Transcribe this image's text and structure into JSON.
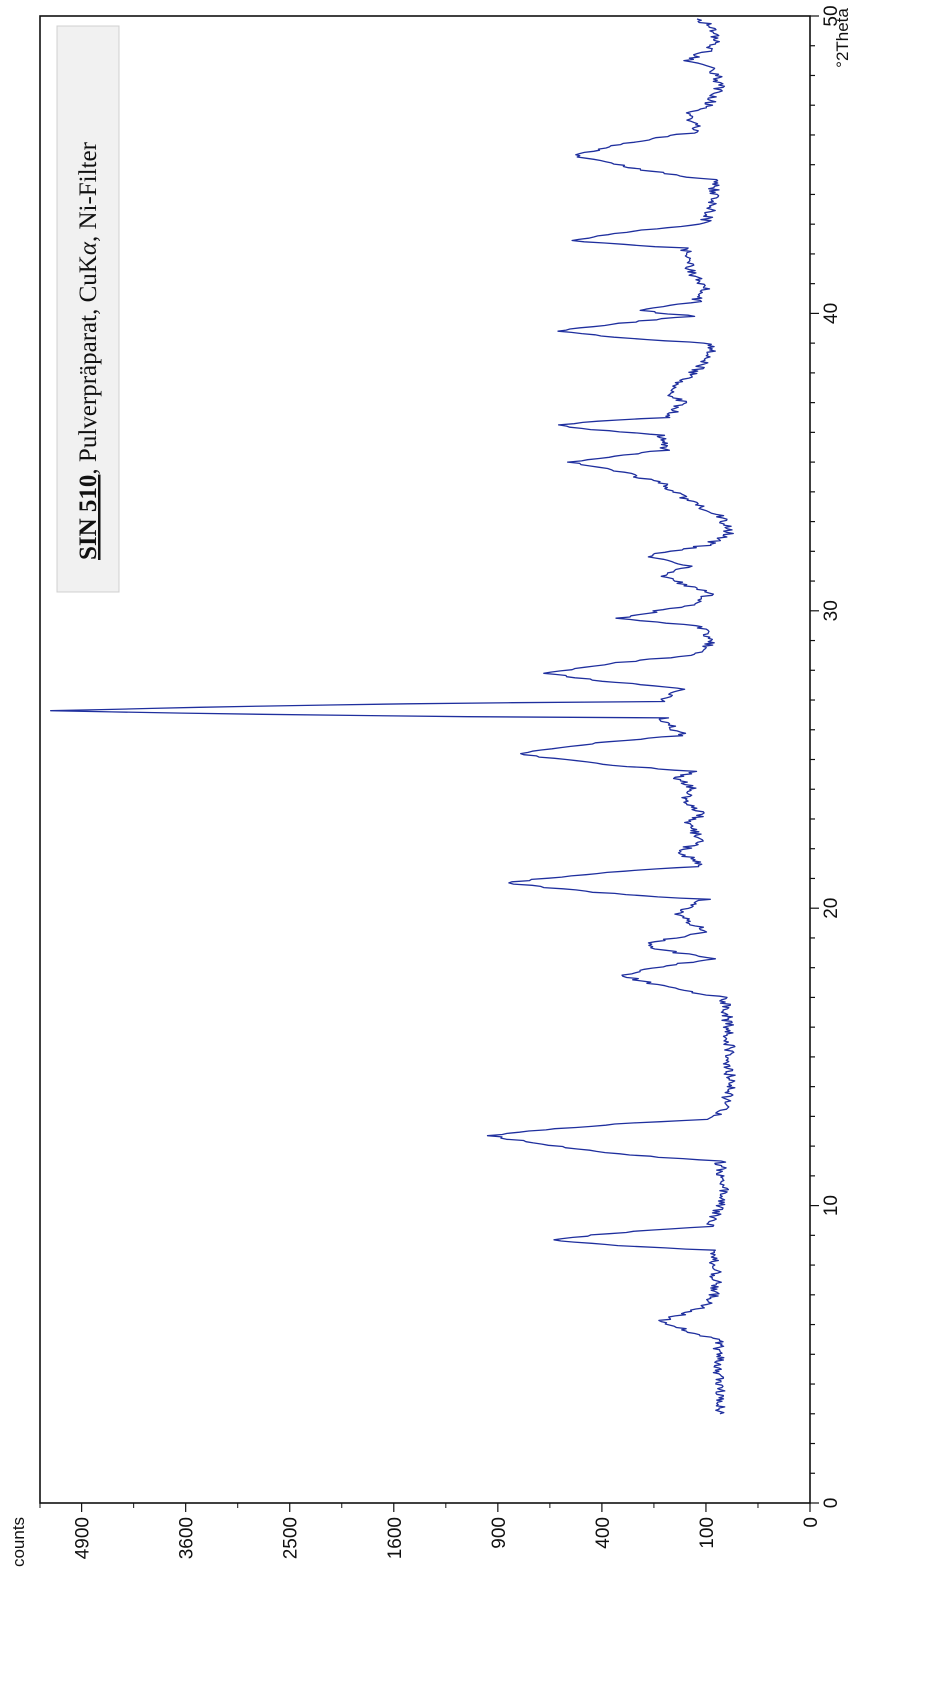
{
  "chart_data": {
    "type": "line",
    "title": "SIN 510, Pulverpräparat, CuKα, Ni-Filter",
    "title_parts": {
      "sample": "SIN 510",
      "comma": ",",
      "rest": " Pulverpräparat, CuK",
      "alpha": "α",
      "filter": ", Ni-Filter"
    },
    "xlabel": "°2Theta",
    "ylabel": "counts",
    "x_scale": "linear",
    "y_scale": "sqrt",
    "xlim": [
      0,
      50
    ],
    "ylim": [
      0,
      5476
    ],
    "x_ticks": [
      0,
      10,
      20,
      30,
      40,
      50
    ],
    "y_ticks": [
      0,
      100,
      400,
      900,
      1600,
      2500,
      3600,
      4900
    ],
    "grid": false,
    "line_color": "#1f2f9e",
    "background_noise_counts": 75,
    "series": [
      {
        "points": [
          [
            3.0,
            72
          ],
          [
            3.5,
            75
          ],
          [
            4.0,
            74
          ],
          [
            4.5,
            78
          ],
          [
            5.0,
            76
          ],
          [
            5.5,
            80
          ],
          [
            6.1,
            205
          ],
          [
            6.6,
            100
          ],
          [
            7.0,
            85
          ],
          [
            7.5,
            82
          ],
          [
            8.0,
            84
          ],
          [
            8.5,
            88
          ],
          [
            8.85,
            615
          ],
          [
            9.3,
            95
          ],
          [
            10.0,
            72
          ],
          [
            10.5,
            70
          ],
          [
            11.0,
            72
          ],
          [
            11.5,
            75
          ],
          [
            12.35,
            950
          ],
          [
            12.9,
            90
          ],
          [
            13.2,
            70
          ],
          [
            13.6,
            65
          ],
          [
            14.0,
            58
          ],
          [
            14.5,
            60
          ],
          [
            15.0,
            62
          ],
          [
            15.5,
            60
          ],
          [
            16.0,
            62
          ],
          [
            16.5,
            64
          ],
          [
            17.0,
            70
          ],
          [
            17.75,
            330
          ],
          [
            18.3,
            85
          ],
          [
            18.75,
            255
          ],
          [
            19.2,
            100
          ],
          [
            19.8,
            160
          ],
          [
            20.3,
            100
          ],
          [
            20.85,
            850
          ],
          [
            21.4,
            105
          ],
          [
            21.9,
            155
          ],
          [
            22.3,
            110
          ],
          [
            22.8,
            140
          ],
          [
            23.2,
            105
          ],
          [
            23.6,
            150
          ],
          [
            24.0,
            125
          ],
          [
            24.4,
            165
          ],
          [
            24.6,
            115
          ],
          [
            25.2,
            790
          ],
          [
            25.8,
            150
          ],
          [
            26.4,
            200
          ],
          [
            26.64,
            5300
          ],
          [
            26.95,
            200
          ],
          [
            27.4,
            150
          ],
          [
            27.9,
            650
          ],
          [
            28.5,
            120
          ],
          [
            29.0,
            85
          ],
          [
            29.5,
            115
          ],
          [
            29.75,
            330
          ],
          [
            30.2,
            115
          ],
          [
            30.6,
            95
          ],
          [
            31.2,
            205
          ],
          [
            31.5,
            135
          ],
          [
            31.85,
            240
          ],
          [
            32.2,
            100
          ],
          [
            32.6,
            60
          ],
          [
            33.2,
            75
          ],
          [
            33.8,
            150
          ],
          [
            34.3,
            205
          ],
          [
            34.7,
            340
          ],
          [
            35.0,
            520
          ],
          [
            35.4,
            190
          ],
          [
            35.9,
            205
          ],
          [
            36.25,
            600
          ],
          [
            36.5,
            190
          ],
          [
            37.0,
            150
          ],
          [
            37.4,
            190
          ],
          [
            37.9,
            135
          ],
          [
            38.5,
            90
          ],
          [
            39.0,
            95
          ],
          [
            39.4,
            580
          ],
          [
            39.9,
            120
          ],
          [
            40.1,
            265
          ],
          [
            40.4,
            120
          ],
          [
            40.9,
            100
          ],
          [
            41.4,
            135
          ],
          [
            41.7,
            130
          ],
          [
            42.2,
            145
          ],
          [
            42.45,
            520
          ],
          [
            43.0,
            105
          ],
          [
            43.5,
            90
          ],
          [
            44.0,
            85
          ],
          [
            44.5,
            88
          ],
          [
            45.3,
            500
          ],
          [
            45.6,
            370
          ],
          [
            46.1,
            115
          ],
          [
            46.7,
            135
          ],
          [
            47.0,
            95
          ],
          [
            47.6,
            75
          ],
          [
            48.2,
            85
          ],
          [
            48.5,
            140
          ],
          [
            48.9,
            90
          ],
          [
            49.3,
            82
          ],
          [
            49.7,
            95
          ],
          [
            49.9,
            118
          ]
        ]
      }
    ]
  }
}
